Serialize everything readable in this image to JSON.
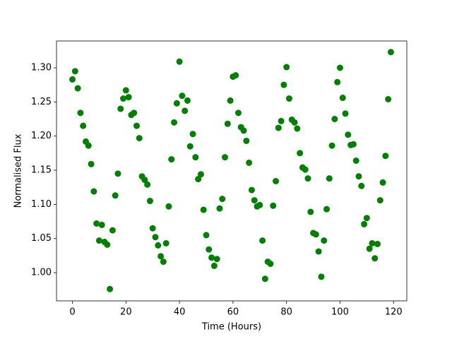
{
  "chart_data": {
    "type": "scatter",
    "xlabel": "Time (Hours)",
    "ylabel": "Normalised Flux",
    "color": "green",
    "x": [
      0,
      1,
      2,
      3,
      4,
      5,
      6,
      7,
      8,
      9,
      10,
      11,
      12,
      13,
      14,
      15,
      16,
      17,
      18,
      19,
      20,
      21,
      22,
      23,
      24,
      25,
      26,
      27,
      28,
      29,
      30,
      31,
      32,
      33,
      34,
      35,
      36,
      37,
      38,
      39,
      40,
      41,
      42,
      43,
      44,
      45,
      46,
      47,
      48,
      49,
      50,
      51,
      52,
      53,
      54,
      55,
      56,
      57,
      58,
      59,
      60,
      61,
      62,
      63,
      64,
      65,
      66,
      67,
      68,
      69,
      70,
      71,
      72,
      73,
      74,
      75,
      76,
      77,
      78,
      79,
      80,
      81,
      82,
      83,
      84,
      85,
      86,
      87,
      88,
      89,
      90,
      91,
      92,
      93,
      94,
      95,
      96,
      97,
      98,
      99,
      100,
      101,
      102,
      103,
      104,
      105,
      106,
      107,
      108,
      109,
      110,
      111,
      112,
      113,
      114,
      115,
      116,
      117,
      118,
      119
    ],
    "values": [
      1.283,
      1.295,
      1.27,
      1.234,
      1.215,
      1.192,
      1.186,
      1.159,
      1.119,
      1.072,
      1.047,
      1.07,
      1.045,
      1.041,
      0.976,
      1.062,
      1.113,
      1.145,
      1.24,
      1.255,
      1.267,
      1.257,
      1.231,
      1.234,
      1.215,
      1.197,
      1.141,
      1.136,
      1.129,
      1.105,
      1.065,
      1.052,
      1.04,
      1.024,
      1.016,
      1.043,
      1.097,
      1.166,
      1.22,
      1.248,
      1.309,
      1.259,
      1.237,
      1.252,
      1.185,
      1.203,
      1.169,
      1.137,
      1.144,
      1.092,
      1.055,
      1.034,
      1.022,
      1.01,
      1.02,
      1.094,
      1.108,
      1.169,
      1.218,
      1.252,
      1.287,
      1.289,
      1.234,
      1.213,
      1.208,
      1.193,
      1.161,
      1.121,
      1.106,
      1.097,
      1.099,
      1.047,
      0.991,
      1.016,
      1.013,
      1.098,
      1.134,
      1.212,
      1.222,
      1.275,
      1.301,
      1.255,
      1.224,
      1.22,
      1.211,
      1.175,
      1.154,
      1.151,
      1.138,
      1.089,
      1.058,
      1.056,
      1.031,
      0.994,
      1.047,
      1.093,
      1.138,
      1.186,
      1.225,
      1.279,
      1.3,
      1.256,
      1.233,
      1.202,
      1.187,
      1.188,
      1.164,
      1.141,
      1.127,
      1.071,
      1.08,
      1.035,
      1.043,
      1.021,
      1.042,
      1.106,
      1.132,
      1.171,
      1.254,
      1.323
    ],
    "xlim": [
      -5.95,
      124.95
    ],
    "ylim": [
      0.9587,
      1.3393
    ],
    "xticks": [
      0,
      20,
      40,
      60,
      80,
      100,
      120
    ],
    "yticks": [
      {
        "value": 1.0,
        "label": "1.00"
      },
      {
        "value": 1.05,
        "label": "1.05"
      },
      {
        "value": 1.1,
        "label": "1.10"
      },
      {
        "value": 1.15,
        "label": "1.15"
      },
      {
        "value": 1.2,
        "label": "1.20"
      },
      {
        "value": 1.25,
        "label": "1.25"
      },
      {
        "value": 1.3,
        "label": "1.30"
      }
    ],
    "grid": false
  }
}
